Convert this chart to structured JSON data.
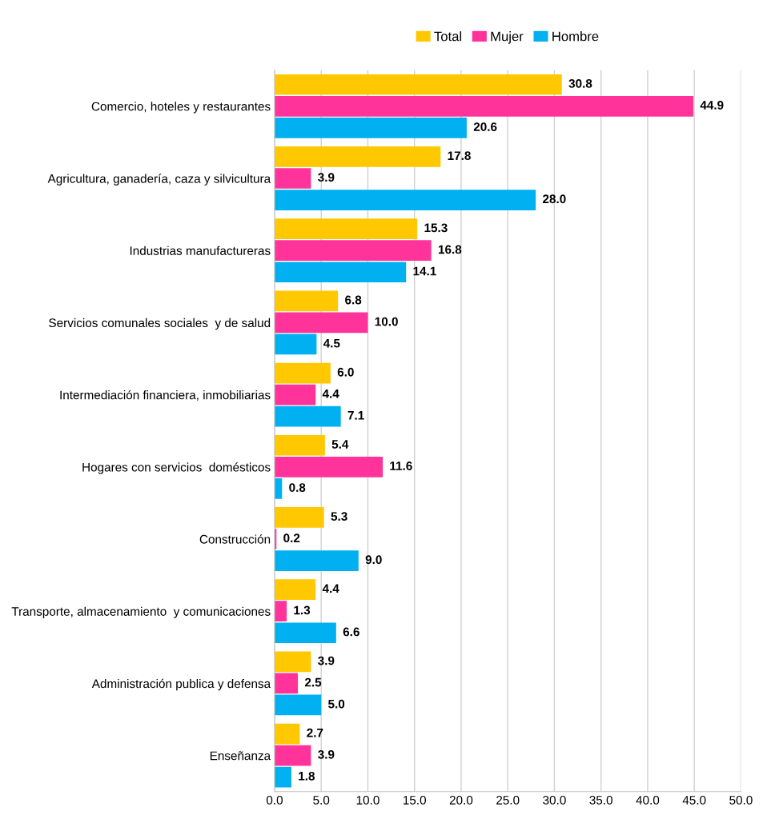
{
  "chart_data": {
    "type": "bar",
    "orientation": "horizontal",
    "categories": [
      "Comercio, hoteles y restaurantes",
      "Agricultura, ganadería, caza y silvicultura",
      "Industrias manufactureras",
      "Servicios comunales sociales  y de salud",
      "Intermediación financiera, inmobiliarias",
      "Hogares con servicios  domésticos",
      "Construcción",
      "Transporte, almacenamiento  y comunicaciones",
      "Administración publica y defensa",
      "Enseñanza"
    ],
    "series": [
      {
        "name": "Total",
        "color": "#ffc800",
        "values": [
          30.8,
          17.8,
          15.3,
          6.8,
          6.0,
          5.4,
          5.3,
          4.4,
          3.9,
          2.7
        ],
        "value_labels": [
          "30.8",
          "17.8",
          "15.3",
          "6.8",
          "6.0",
          "5.4",
          "5.3",
          "4.4",
          "3.9",
          "2.7"
        ]
      },
      {
        "name": "Mujer",
        "color": "#ff3399",
        "values": [
          44.9,
          3.9,
          16.8,
          10.0,
          4.4,
          11.6,
          0.2,
          1.3,
          2.5,
          3.9
        ],
        "value_labels": [
          "44.9",
          "3.9",
          "16.8",
          "10.0",
          "4.4",
          "11.6",
          "0.2",
          "1.3",
          "2.5",
          "3.9"
        ]
      },
      {
        "name": "Hombre",
        "color": "#00b0f0",
        "values": [
          20.6,
          28.0,
          14.1,
          4.5,
          7.1,
          0.8,
          9.0,
          6.6,
          5.0,
          1.8
        ],
        "value_labels": [
          "20.6",
          "28.0",
          "14.1",
          "4.5",
          "7.1",
          "0.8",
          "9.0",
          "6.6",
          "5.0",
          "1.8"
        ]
      }
    ],
    "xlim": [
      0,
      50
    ],
    "xticks": [
      {
        "value": 0,
        "label": "0.0"
      },
      {
        "value": 5,
        "label": "5.0"
      },
      {
        "value": 10,
        "label": "10.0"
      },
      {
        "value": 15,
        "label": "15.0"
      },
      {
        "value": 20,
        "label": "20.0"
      },
      {
        "value": 25,
        "label": "25.0"
      },
      {
        "value": 30,
        "label": "30.0"
      },
      {
        "value": 35,
        "label": "35.0"
      },
      {
        "value": 40,
        "label": "40.0"
      },
      {
        "value": 45,
        "label": "45.0"
      },
      {
        "value": 50,
        "label": "50.0"
      }
    ],
    "grid": "x",
    "legend": "top"
  }
}
